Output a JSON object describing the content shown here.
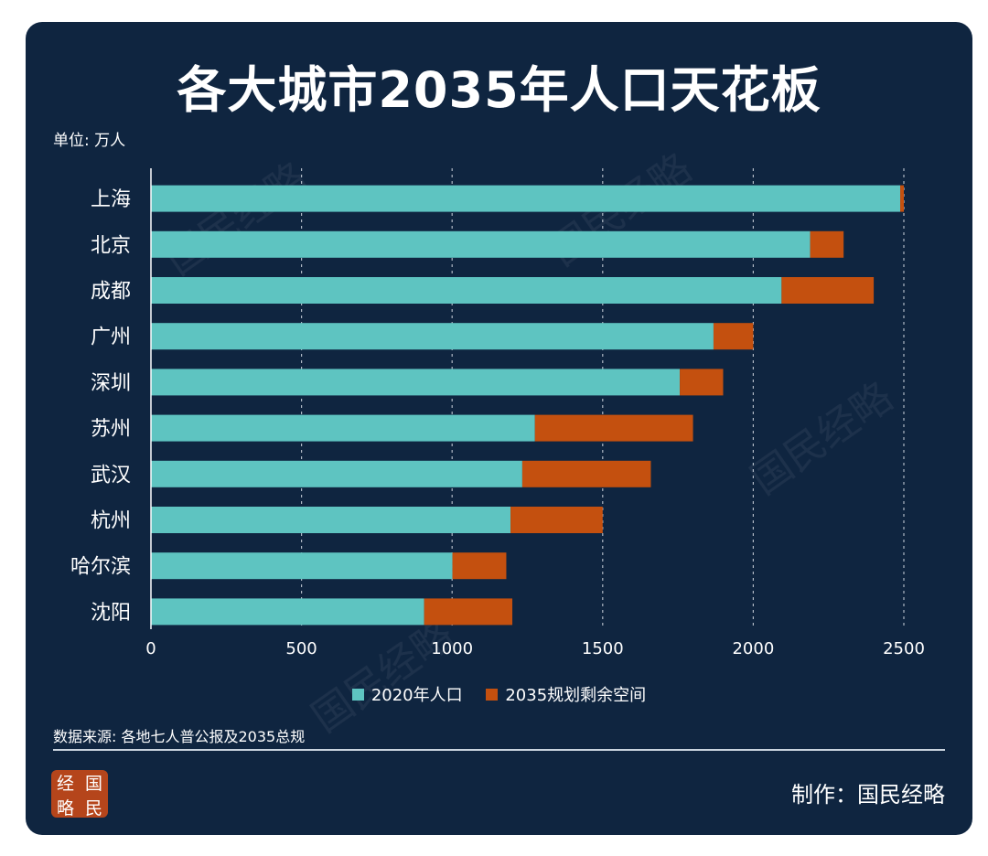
{
  "header": {
    "title": "各大城市2035年人口天花板",
    "unit": "单位: 万人"
  },
  "chart_data": {
    "type": "bar",
    "orientation": "horizontal",
    "stacked": true,
    "categories": [
      "上海",
      "北京",
      "成都",
      "广州",
      "深圳",
      "苏州",
      "武汉",
      "杭州",
      "哈尔滨",
      "沈阳"
    ],
    "series": [
      {
        "name": "2020年人口",
        "color": "#5ec4c1",
        "values": [
          2488,
          2189,
          2094,
          1868,
          1756,
          1275,
          1233,
          1194,
          1001,
          907
        ]
      },
      {
        "name": "2035规划剩余空间",
        "color": "#c4500f",
        "values": [
          12,
          111,
          306,
          132,
          144,
          525,
          427,
          306,
          179,
          293
        ]
      }
    ],
    "xlim": [
      0,
      2500
    ],
    "xticks": [
      0,
      500,
      1000,
      1500,
      2000,
      2500
    ],
    "grid": "vertical-dashed",
    "legend": "bottom"
  },
  "footer": {
    "source": "数据来源: 各地七人普公报及2035总规",
    "credit": "制作：国民经略",
    "logo_chars": [
      "经",
      "国",
      "略",
      "民"
    ]
  }
}
